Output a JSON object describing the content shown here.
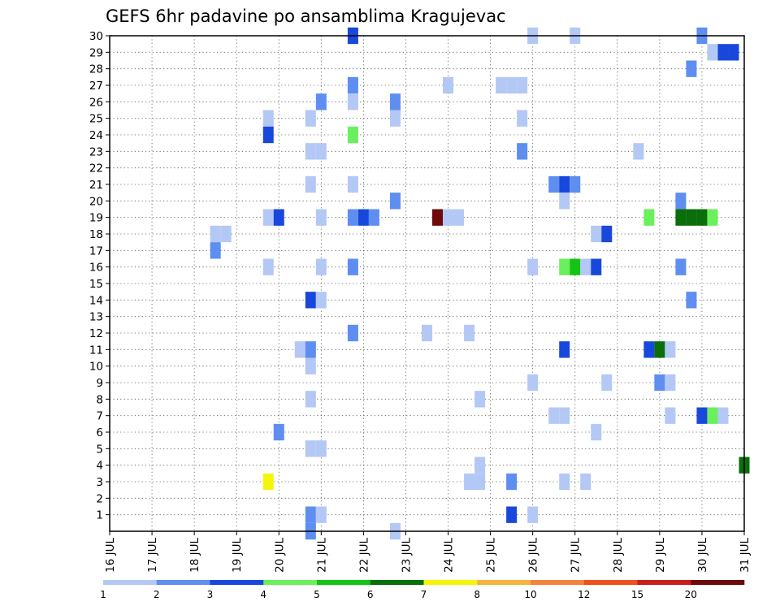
{
  "chart_data": {
    "type": "heatmap",
    "title": "GEFS 6hr padavine po ansamblima Kragujevac",
    "x_ticks": [
      "16 JUL",
      "17 JUL",
      "18 JUL",
      "19 JUL",
      "20 JUL",
      "21 JUL",
      "22 JUL",
      "23 JUL",
      "24 JUL",
      "25 JUL",
      "26 JUL",
      "27 JUL",
      "28 JUL",
      "29 JUL",
      "30 JUL",
      "31 JUL"
    ],
    "y_ticks": [
      1,
      2,
      3,
      4,
      5,
      6,
      7,
      8,
      9,
      10,
      11,
      12,
      13,
      14,
      15,
      16,
      17,
      18,
      19,
      20,
      21,
      22,
      23,
      24,
      25,
      26,
      27,
      28,
      29,
      30
    ],
    "x_range": [
      "16 JUL 00z",
      "31 JUL 00z"
    ],
    "time_step_hours": 6,
    "y_range": [
      0,
      30
    ],
    "grid": true,
    "colorbar": {
      "labels": [
        "1",
        "2",
        "3",
        "4",
        "5",
        "6",
        "7",
        "8",
        "10",
        "12",
        "15",
        "20"
      ],
      "colors": [
        "#b3c8f5",
        "#5e8ef0",
        "#1848db",
        "#6af05c",
        "#14c414",
        "#0a6e0a",
        "#f5f50a",
        "#f5b43c",
        "#f5823c",
        "#f0501e",
        "#c81e1e",
        "#6e0a0a"
      ]
    },
    "cells": [
      {
        "member": 30,
        "time": "21 JUL 18z",
        "class": 3
      },
      {
        "member": 30,
        "time": "26 JUL 00z",
        "class": 1
      },
      {
        "member": 30,
        "time": "27 JUL 00z",
        "class": 1
      },
      {
        "member": 30,
        "time": "30 JUL 00z",
        "class": 2
      },
      {
        "member": 29,
        "time": "30 JUL 06z",
        "class": 1
      },
      {
        "member": 29,
        "time": "30 JUL 12z",
        "class": 3
      },
      {
        "member": 29,
        "time": "30 JUL 18z",
        "class": 3
      },
      {
        "member": 28,
        "time": "29 JUL 18z",
        "class": 2
      },
      {
        "member": 27,
        "time": "21 JUL 18z",
        "class": 2
      },
      {
        "member": 27,
        "time": "24 JUL 00z",
        "class": 1
      },
      {
        "member": 27,
        "time": "25 JUL 06z",
        "class": 1
      },
      {
        "member": 27,
        "time": "25 JUL 12z",
        "class": 1
      },
      {
        "member": 27,
        "time": "25 JUL 18z",
        "class": 1
      },
      {
        "member": 26,
        "time": "21 JUL 00z",
        "class": 2
      },
      {
        "member": 26,
        "time": "21 JUL 18z",
        "class": 1
      },
      {
        "member": 26,
        "time": "22 JUL 18z",
        "class": 2
      },
      {
        "member": 25,
        "time": "19 JUL 18z",
        "class": 1
      },
      {
        "member": 25,
        "time": "20 JUL 18z",
        "class": 1
      },
      {
        "member": 25,
        "time": "22 JUL 18z",
        "class": 1
      },
      {
        "member": 25,
        "time": "25 JUL 18z",
        "class": 1
      },
      {
        "member": 24,
        "time": "19 JUL 18z",
        "class": 3
      },
      {
        "member": 24,
        "time": "21 JUL 18z",
        "class": 4
      },
      {
        "member": 23,
        "time": "20 JUL 18z",
        "class": 1
      },
      {
        "member": 23,
        "time": "21 JUL 00z",
        "class": 1
      },
      {
        "member": 23,
        "time": "25 JUL 18z",
        "class": 2
      },
      {
        "member": 23,
        "time": "28 JUL 12z",
        "class": 1
      },
      {
        "member": 21,
        "time": "20 JUL 18z",
        "class": 1
      },
      {
        "member": 21,
        "time": "21 JUL 18z",
        "class": 1
      },
      {
        "member": 21,
        "time": "26 JUL 12z",
        "class": 2
      },
      {
        "member": 21,
        "time": "26 JUL 18z",
        "class": 3
      },
      {
        "member": 21,
        "time": "27 JUL 00z",
        "class": 2
      },
      {
        "member": 20,
        "time": "22 JUL 18z",
        "class": 2
      },
      {
        "member": 20,
        "time": "26 JUL 18z",
        "class": 1
      },
      {
        "member": 20,
        "time": "29 JUL 12z",
        "class": 2
      },
      {
        "member": 19,
        "time": "19 JUL 18z",
        "class": 1
      },
      {
        "member": 19,
        "time": "20 JUL 00z",
        "class": 3
      },
      {
        "member": 19,
        "time": "21 JUL 00z",
        "class": 1
      },
      {
        "member": 19,
        "time": "21 JUL 18z",
        "class": 2
      },
      {
        "member": 19,
        "time": "22 JUL 00z",
        "class": 3
      },
      {
        "member": 19,
        "time": "22 JUL 06z",
        "class": 2
      },
      {
        "member": 19,
        "time": "23 JUL 18z",
        "class": 12
      },
      {
        "member": 19,
        "time": "24 JUL 00z",
        "class": 1
      },
      {
        "member": 19,
        "time": "24 JUL 06z",
        "class": 1
      },
      {
        "member": 19,
        "time": "28 JUL 18z",
        "class": 4
      },
      {
        "member": 19,
        "time": "29 JUL 12z",
        "class": 6
      },
      {
        "member": 19,
        "time": "29 JUL 18z",
        "class": 6
      },
      {
        "member": 19,
        "time": "30 JUL 00z",
        "class": 6
      },
      {
        "member": 19,
        "time": "30 JUL 06z",
        "class": 4
      },
      {
        "member": 18,
        "time": "18 JUL 12z",
        "class": 1
      },
      {
        "member": 18,
        "time": "18 JUL 18z",
        "class": 1
      },
      {
        "member": 18,
        "time": "27 JUL 12z",
        "class": 1
      },
      {
        "member": 18,
        "time": "27 JUL 18z",
        "class": 3
      },
      {
        "member": 17,
        "time": "18 JUL 12z",
        "class": 2
      },
      {
        "member": 16,
        "time": "19 JUL 18z",
        "class": 1
      },
      {
        "member": 16,
        "time": "21 JUL 00z",
        "class": 1
      },
      {
        "member": 16,
        "time": "21 JUL 18z",
        "class": 2
      },
      {
        "member": 16,
        "time": "26 JUL 00z",
        "class": 1
      },
      {
        "member": 16,
        "time": "26 JUL 18z",
        "class": 4
      },
      {
        "member": 16,
        "time": "27 JUL 00z",
        "class": 5
      },
      {
        "member": 16,
        "time": "27 JUL 06z",
        "class": 1
      },
      {
        "member": 16,
        "time": "27 JUL 12z",
        "class": 3
      },
      {
        "member": 16,
        "time": "29 JUL 12z",
        "class": 2
      },
      {
        "member": 14,
        "time": "20 JUL 18z",
        "class": 3
      },
      {
        "member": 14,
        "time": "21 JUL 00z",
        "class": 1
      },
      {
        "member": 14,
        "time": "29 JUL 18z",
        "class": 2
      },
      {
        "member": 12,
        "time": "21 JUL 18z",
        "class": 2
      },
      {
        "member": 12,
        "time": "23 JUL 12z",
        "class": 1
      },
      {
        "member": 12,
        "time": "24 JUL 12z",
        "class": 1
      },
      {
        "member": 11,
        "time": "20 JUL 12z",
        "class": 1
      },
      {
        "member": 11,
        "time": "20 JUL 18z",
        "class": 2
      },
      {
        "member": 11,
        "time": "26 JUL 18z",
        "class": 3
      },
      {
        "member": 11,
        "time": "28 JUL 18z",
        "class": 3
      },
      {
        "member": 11,
        "time": "29 JUL 00z",
        "class": 6
      },
      {
        "member": 11,
        "time": "29 JUL 06z",
        "class": 1
      },
      {
        "member": 10,
        "time": "20 JUL 18z",
        "class": 1
      },
      {
        "member": 9,
        "time": "26 JUL 00z",
        "class": 1
      },
      {
        "member": 9,
        "time": "27 JUL 18z",
        "class": 1
      },
      {
        "member": 9,
        "time": "29 JUL 00z",
        "class": 2
      },
      {
        "member": 9,
        "time": "29 JUL 06z",
        "class": 1
      },
      {
        "member": 8,
        "time": "20 JUL 18z",
        "class": 1
      },
      {
        "member": 8,
        "time": "24 JUL 18z",
        "class": 1
      },
      {
        "member": 7,
        "time": "26 JUL 12z",
        "class": 1
      },
      {
        "member": 7,
        "time": "26 JUL 18z",
        "class": 1
      },
      {
        "member": 7,
        "time": "29 JUL 06z",
        "class": 1
      },
      {
        "member": 7,
        "time": "30 JUL 00z",
        "class": 3
      },
      {
        "member": 7,
        "time": "30 JUL 06z",
        "class": 4
      },
      {
        "member": 7,
        "time": "30 JUL 12z",
        "class": 1
      },
      {
        "member": 6,
        "time": "20 JUL 00z",
        "class": 2
      },
      {
        "member": 6,
        "time": "27 JUL 12z",
        "class": 1
      },
      {
        "member": 5,
        "time": "20 JUL 18z",
        "class": 1
      },
      {
        "member": 5,
        "time": "21 JUL 00z",
        "class": 1
      },
      {
        "member": 4,
        "time": "24 JUL 18z",
        "class": 1
      },
      {
        "member": 4,
        "time": "31 JUL 00z",
        "class": 6
      },
      {
        "member": 3,
        "time": "19 JUL 18z",
        "class": 7
      },
      {
        "member": 3,
        "time": "24 JUL 12z",
        "class": 1
      },
      {
        "member": 3,
        "time": "24 JUL 18z",
        "class": 1
      },
      {
        "member": 3,
        "time": "25 JUL 12z",
        "class": 2
      },
      {
        "member": 3,
        "time": "26 JUL 18z",
        "class": 1
      },
      {
        "member": 3,
        "time": "27 JUL 06z",
        "class": 1
      },
      {
        "member": 1,
        "time": "20 JUL 18z",
        "class": 2
      },
      {
        "member": 1,
        "time": "21 JUL 00z",
        "class": 1
      },
      {
        "member": 1,
        "time": "25 JUL 12z",
        "class": 3
      },
      {
        "member": 1,
        "time": "26 JUL 00z",
        "class": 1
      },
      {
        "member": 0,
        "time": "20 JUL 18z",
        "class": 2
      },
      {
        "member": 0,
        "time": "22 JUL 18z",
        "class": 1
      }
    ]
  }
}
